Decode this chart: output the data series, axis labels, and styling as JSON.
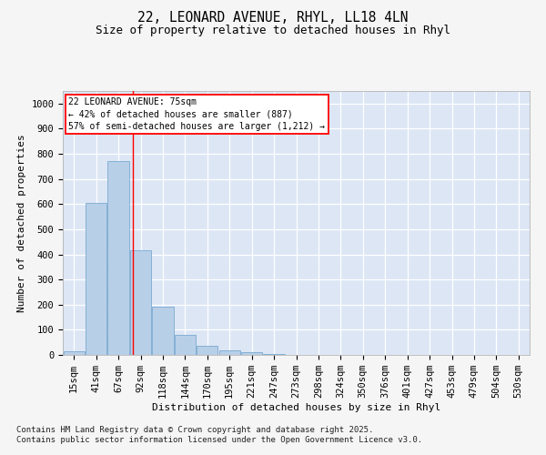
{
  "title_line1": "22, LEONARD AVENUE, RHYL, LL18 4LN",
  "title_line2": "Size of property relative to detached houses in Rhyl",
  "xlabel": "Distribution of detached houses by size in Rhyl",
  "ylabel": "Number of detached properties",
  "background_color": "#dce6f5",
  "fig_background_color": "#f5f5f5",
  "bar_color": "#b8cfe8",
  "bar_edge_color": "#7aaad0",
  "grid_color": "#ffffff",
  "categories": [
    "15sqm",
    "41sqm",
    "67sqm",
    "92sqm",
    "118sqm",
    "144sqm",
    "170sqm",
    "195sqm",
    "221sqm",
    "247sqm",
    "273sqm",
    "298sqm",
    "324sqm",
    "350sqm",
    "376sqm",
    "401sqm",
    "427sqm",
    "453sqm",
    "479sqm",
    "504sqm",
    "530sqm"
  ],
  "values": [
    15,
    605,
    770,
    415,
    193,
    78,
    38,
    18,
    10,
    5,
    0,
    0,
    0,
    0,
    0,
    0,
    0,
    0,
    0,
    0,
    0
  ],
  "ylim": [
    0,
    1050
  ],
  "yticks": [
    0,
    100,
    200,
    300,
    400,
    500,
    600,
    700,
    800,
    900,
    1000
  ],
  "annotation_box_text": "22 LEONARD AVENUE: 75sqm\n← 42% of detached houses are smaller (887)\n57% of semi-detached houses are larger (1,212) →",
  "property_line_x": 2.67,
  "footer_text": "Contains HM Land Registry data © Crown copyright and database right 2025.\nContains public sector information licensed under the Open Government Licence v3.0.",
  "title_fontsize": 10.5,
  "subtitle_fontsize": 9,
  "label_fontsize": 8,
  "tick_fontsize": 7.5,
  "footer_fontsize": 6.5,
  "ann_fontsize": 7
}
